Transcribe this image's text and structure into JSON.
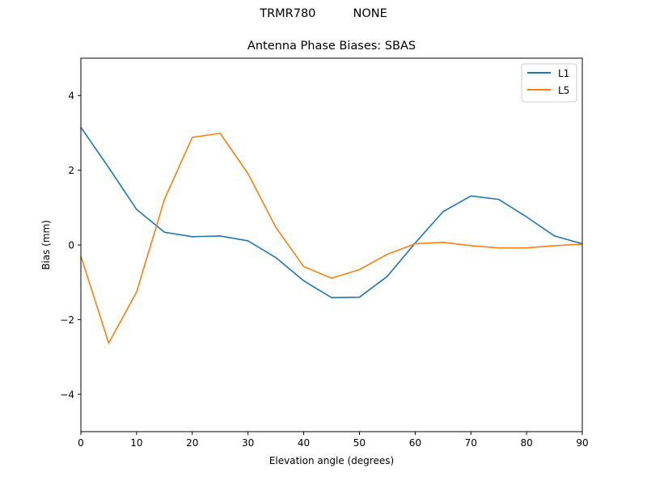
{
  "figure": {
    "suptitle": "TRMR780          NONE",
    "title": "Antenna Phase Biases: SBAS"
  },
  "colors": {
    "L1": "#1f77b4",
    "L5": "#ff7f0e",
    "axes": "#000000",
    "background": "#ffffff"
  },
  "chart_data": {
    "type": "line",
    "title": "Antenna Phase Biases: SBAS",
    "suptitle": "TRMR780          NONE",
    "xlabel": "Elevation angle (degrees)",
    "ylabel": "Bias (mm)",
    "xlim": [
      0,
      90
    ],
    "ylim": [
      -5,
      5
    ],
    "xticks": [
      0,
      10,
      20,
      30,
      40,
      50,
      60,
      70,
      80,
      90
    ],
    "yticks": [
      -4,
      -2,
      0,
      2,
      4
    ],
    "ytick_labels": [
      "−4",
      "−2",
      "0",
      "2",
      "4"
    ],
    "grid": false,
    "legend_position": "upper right",
    "x": [
      0,
      5,
      10,
      15,
      20,
      25,
      30,
      35,
      40,
      45,
      50,
      55,
      60,
      65,
      70,
      75,
      80,
      85,
      90
    ],
    "series": [
      {
        "name": "L1",
        "color": "#1f77b4",
        "values": [
          3.15,
          2.07,
          0.95,
          0.34,
          0.22,
          0.24,
          0.11,
          -0.34,
          -0.96,
          -1.41,
          -1.4,
          -0.84,
          0.05,
          0.89,
          1.31,
          1.22,
          0.75,
          0.24,
          0.03
        ]
      },
      {
        "name": "L5",
        "color": "#ff7f0e",
        "values": [
          -0.3,
          -2.63,
          -1.26,
          1.22,
          2.88,
          2.99,
          1.91,
          0.47,
          -0.58,
          -0.89,
          -0.66,
          -0.25,
          0.03,
          0.07,
          -0.02,
          -0.08,
          -0.08,
          -0.02,
          0.02
        ]
      }
    ]
  }
}
